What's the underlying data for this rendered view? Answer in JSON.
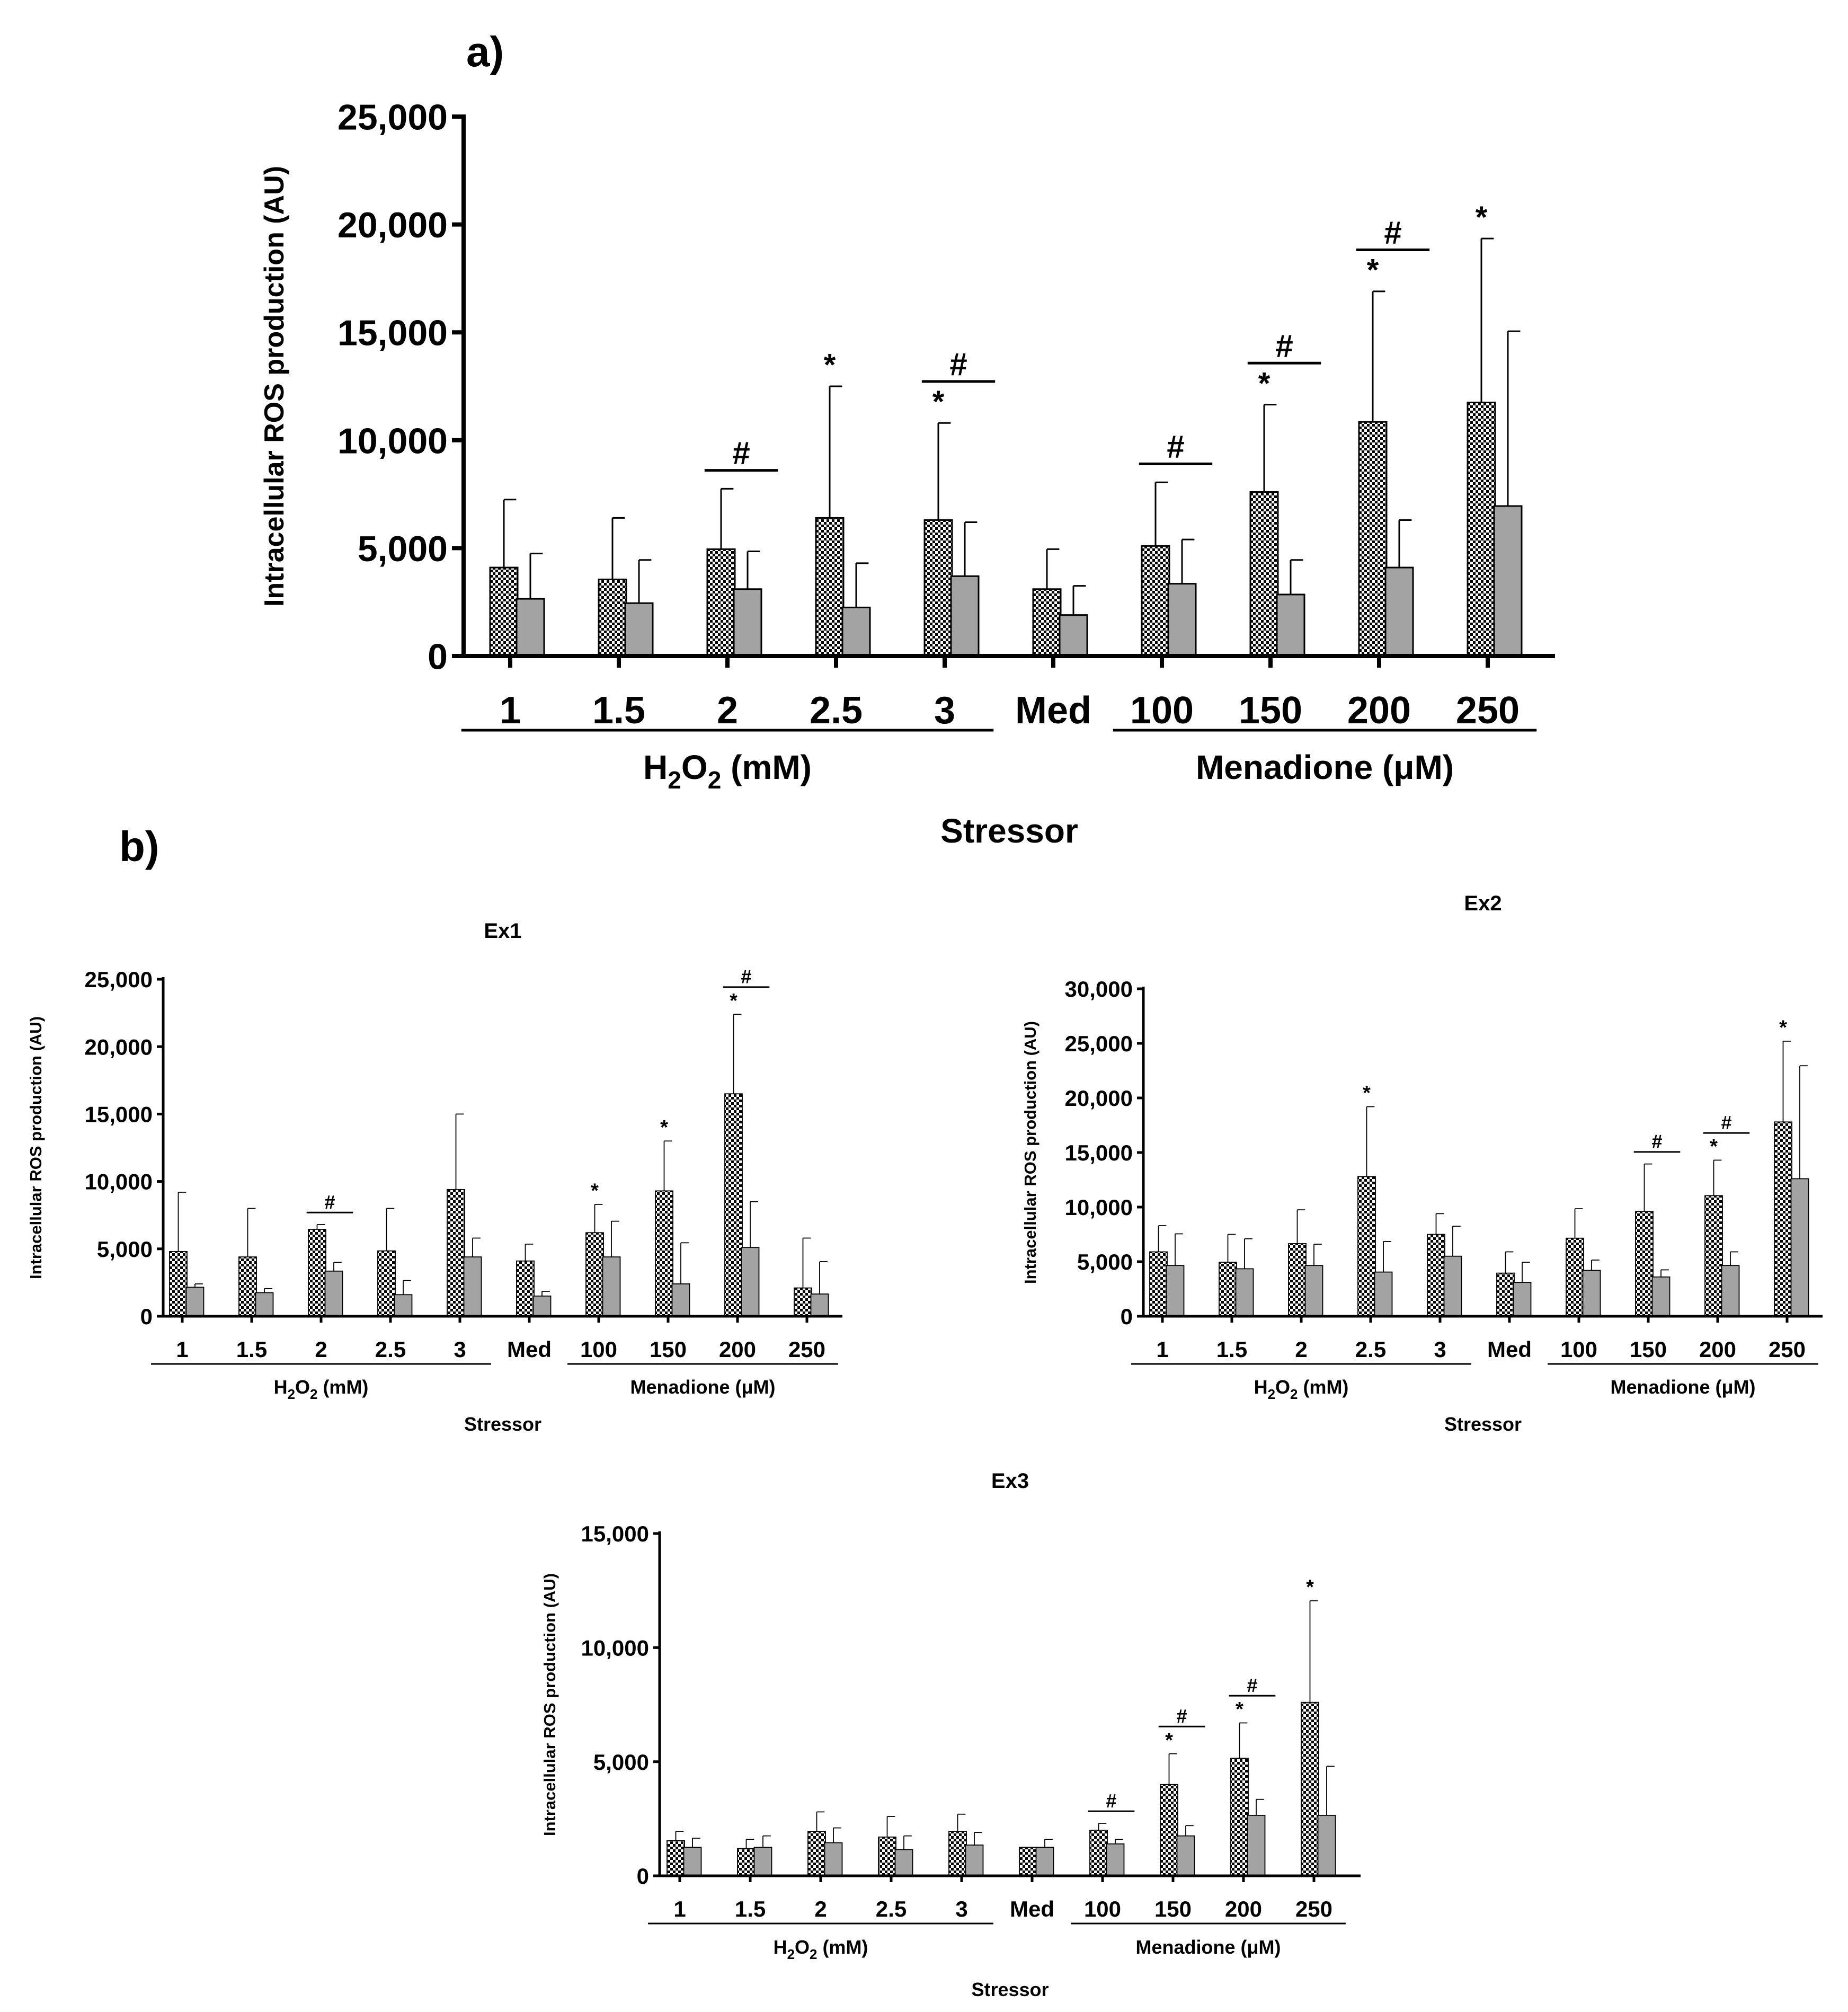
{
  "panels": {
    "a": "a)",
    "b": "b)"
  },
  "colors": {
    "series1_pattern": "checkered-black-white",
    "series2_fill": "#a3a3a3",
    "axis": "#000000"
  },
  "chart_data": [
    {
      "id": "main",
      "type": "bar",
      "title": "",
      "ylabel": "Intracellular ROS production (AU)",
      "xlabel": "Stressor",
      "ylim": [
        0,
        25000
      ],
      "yticks": [
        0,
        5000,
        10000,
        15000,
        20000,
        25000
      ],
      "ytick_labels": [
        "0",
        "5,000",
        "10,000",
        "15,000",
        "20,000",
        "25,000"
      ],
      "categories": [
        "1",
        "1.5",
        "2",
        "2.5",
        "3",
        "Med",
        "100",
        "150",
        "200",
        "250"
      ],
      "groups": [
        {
          "label": "H2O2 (mM)",
          "from": 0,
          "to": 4
        },
        {
          "label": "Menadione (μM)",
          "from": 6,
          "to": 9
        }
      ],
      "series": [
        {
          "values": [
            4100,
            3550,
            4950,
            6400,
            6300,
            3100,
            5100,
            7600,
            10850,
            11750
          ],
          "errors": [
            3150,
            2850,
            2800,
            6100,
            4500,
            1850,
            2950,
            4050,
            6050,
            7600
          ]
        },
        {
          "values": [
            2650,
            2450,
            3100,
            2250,
            3700,
            1900,
            3350,
            2850,
            4100,
            6950
          ],
          "errors": [
            2100,
            2000,
            1750,
            2050,
            2500,
            1350,
            2050,
            1600,
            2200,
            8100
          ]
        }
      ],
      "stars": [
        3,
        4,
        7,
        8,
        9
      ],
      "hash": [
        2,
        4,
        6,
        7,
        8
      ],
      "star_symbol": "*",
      "hash_symbol": "#"
    },
    {
      "id": "ex1",
      "type": "bar",
      "title": "Ex1",
      "ylabel": "Intracellular ROS production (AU)",
      "xlabel": "Stressor",
      "ylim": [
        0,
        25000
      ],
      "yticks": [
        0,
        5000,
        10000,
        15000,
        20000,
        25000
      ],
      "ytick_labels": [
        "0",
        "5,000",
        "10,000",
        "15,000",
        "20,000",
        "25,000"
      ],
      "categories": [
        "1",
        "1.5",
        "2",
        "2.5",
        "3",
        "Med",
        "100",
        "150",
        "200",
        "250"
      ],
      "groups": [
        {
          "label": "H2O2 (mM)",
          "from": 0,
          "to": 4
        },
        {
          "label": "Menadione (μM)",
          "from": 6,
          "to": 9
        }
      ],
      "series": [
        {
          "values": [
            4800,
            4400,
            6450,
            4850,
            9400,
            4100,
            6200,
            9300,
            16500,
            2100
          ],
          "errors": [
            4400,
            3600,
            350,
            3150,
            5600,
            1250,
            2100,
            3700,
            5900,
            3700
          ]
        },
        {
          "values": [
            2150,
            1750,
            3350,
            1600,
            4400,
            1500,
            4400,
            2400,
            5100,
            1650
          ],
          "errors": [
            250,
            300,
            650,
            1050,
            1400,
            350,
            2650,
            3050,
            3400,
            2400
          ]
        }
      ],
      "stars": [
        6,
        7,
        8
      ],
      "hash": [
        2,
        8
      ],
      "star_symbol": "*",
      "hash_symbol": "#"
    },
    {
      "id": "ex2",
      "type": "bar",
      "title": "Ex2",
      "ylabel": "Intracellular ROS production (AU)",
      "xlabel": "Stressor",
      "ylim": [
        0,
        30000
      ],
      "yticks": [
        0,
        5000,
        10000,
        15000,
        20000,
        25000,
        30000
      ],
      "ytick_labels": [
        "0",
        "5,000",
        "10,000",
        "15,000",
        "20,000",
        "25,000",
        "30,000"
      ],
      "categories": [
        "1",
        "1.5",
        "2",
        "2.5",
        "3",
        "Med",
        "100",
        "150",
        "200",
        "250"
      ],
      "groups": [
        {
          "label": "H2O2 (mM)",
          "from": 0,
          "to": 4
        },
        {
          "label": "Menadione (μM)",
          "from": 6,
          "to": 9
        }
      ],
      "series": [
        {
          "values": [
            5900,
            4950,
            6650,
            12800,
            7500,
            3950,
            7150,
            9600,
            11050,
            17800
          ],
          "errors": [
            2400,
            2550,
            3100,
            6400,
            1900,
            1950,
            2700,
            4350,
            3250,
            7400
          ]
        },
        {
          "values": [
            4650,
            4350,
            4650,
            4050,
            5500,
            3100,
            4200,
            3600,
            4650,
            12600
          ],
          "errors": [
            2900,
            2750,
            1950,
            2800,
            2750,
            1850,
            950,
            650,
            1250,
            10350
          ]
        }
      ],
      "stars": [
        3,
        8,
        9
      ],
      "hash": [
        7,
        8
      ],
      "star_symbol": "*",
      "hash_symbol": "#"
    },
    {
      "id": "ex3",
      "type": "bar",
      "title": "Ex3",
      "ylabel": "Intracellular ROS production (AU)",
      "xlabel": "Stressor",
      "ylim": [
        0,
        15000
      ],
      "yticks": [
        0,
        5000,
        10000,
        15000
      ],
      "ytick_labels": [
        "0",
        "5,000",
        "10,000",
        "15,000"
      ],
      "categories": [
        "1",
        "1.5",
        "2",
        "2.5",
        "3",
        "Med",
        "100",
        "150",
        "200",
        "250"
      ],
      "groups": [
        {
          "label": "H2O2 (mM)",
          "from": 0,
          "to": 4
        },
        {
          "label": "Menadione (μM)",
          "from": 6,
          "to": 9
        }
      ],
      "series": [
        {
          "values": [
            1550,
            1200,
            1950,
            1700,
            1950,
            1250,
            2000,
            4000,
            5150,
            7600
          ],
          "errors": [
            400,
            400,
            850,
            900,
            750,
            0,
            300,
            1350,
            1550,
            4450
          ]
        },
        {
          "values": [
            1250,
            1250,
            1450,
            1150,
            1350,
            1250,
            1400,
            1750,
            2650,
            2650
          ],
          "errors": [
            400,
            500,
            650,
            600,
            550,
            350,
            200,
            450,
            700,
            2150
          ]
        }
      ],
      "stars": [
        7,
        8,
        9
      ],
      "hash": [
        6,
        7,
        8
      ],
      "star_symbol": "*",
      "hash_symbol": "#"
    }
  ]
}
